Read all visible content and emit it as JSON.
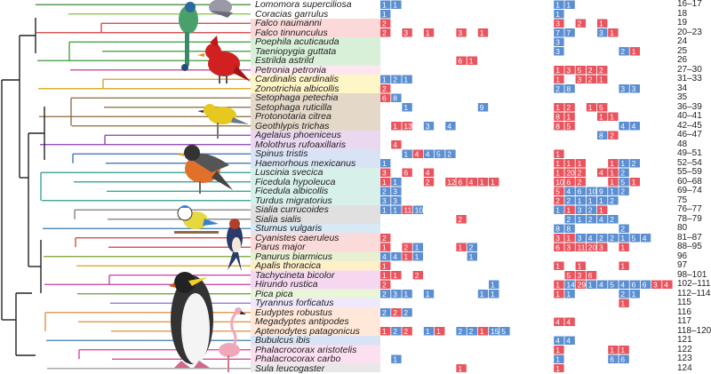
{
  "colors": {
    "high": "#e9545e",
    "low": "#5b8fd2",
    "tree": "#222222"
  },
  "rows": [
    {
      "species": "Lomomora superciliosa",
      "idx": "16–17",
      "band": "#ffffff",
      "branch": "#3a8a3a",
      "cells": [
        [
          0,
          1,
          "b"
        ],
        [
          1,
          1,
          "b"
        ],
        [
          16,
          1,
          "b"
        ],
        [
          17,
          1,
          "b"
        ]
      ]
    },
    {
      "species": "Coracias garrulus",
      "idx": "18",
      "band": "#ffffff",
      "branch": "#8ac046",
      "cells": [
        [
          0,
          1,
          "b"
        ],
        [
          16,
          1,
          "b"
        ]
      ]
    },
    {
      "species": "Falco naumanni",
      "idx": "19",
      "band": "#fbd9d9",
      "branch": "#d23b3b",
      "cells": [
        [
          0,
          2,
          "r"
        ],
        [
          16,
          3,
          "r"
        ],
        [
          18,
          2,
          "r"
        ],
        [
          20,
          1,
          "r"
        ]
      ]
    },
    {
      "species": "Falco tinnunculus",
      "idx": "20–23",
      "band": "#fbd9d9",
      "branch": "#d23b3b",
      "cells": [
        [
          0,
          2,
          "r"
        ],
        [
          2,
          3,
          "r"
        ],
        [
          4,
          1,
          "r"
        ],
        [
          7,
          3,
          "r"
        ],
        [
          9,
          1,
          "r"
        ],
        [
          16,
          7,
          "b"
        ],
        [
          17,
          7,
          "b"
        ],
        [
          20,
          3,
          "b"
        ],
        [
          21,
          1,
          "r"
        ]
      ]
    },
    {
      "species": "Poephila acuticauda",
      "idx": "24",
      "band": "#d8f0d8",
      "branch": "#3a9a3a",
      "cells": [
        [
          16,
          3,
          "b"
        ]
      ]
    },
    {
      "species": "Taeniopygia guttata",
      "idx": "25",
      "band": "#d8f0d8",
      "branch": "#3a9a3a",
      "cells": [
        [
          16,
          3,
          "b"
        ],
        [
          22,
          2,
          "b"
        ],
        [
          23,
          1,
          "r"
        ]
      ]
    },
    {
      "species": "Estrilda astrild",
      "idx": "26",
      "band": "#d8f0d8",
      "branch": "#3a9a3a",
      "cells": [
        [
          7,
          6,
          "r"
        ],
        [
          8,
          1,
          "r"
        ]
      ]
    },
    {
      "species": "Petronia petronia",
      "idx": "27–30",
      "band": "#fde6f0",
      "branch": "#c03c8c",
      "cells": [
        [
          16,
          1,
          "r"
        ],
        [
          17,
          3,
          "r"
        ],
        [
          18,
          5,
          "r"
        ],
        [
          19,
          2,
          "r"
        ],
        [
          20,
          2,
          "r"
        ]
      ]
    },
    {
      "species": "Cardinalis cardinalis",
      "idx": "31–33",
      "band": "#fff6c8",
      "branch": "#d4a017",
      "cells": [
        [
          0,
          1,
          "b"
        ],
        [
          1,
          2,
          "b"
        ],
        [
          2,
          1,
          "b"
        ],
        [
          16,
          1,
          "r"
        ],
        [
          18,
          3,
          "r"
        ],
        [
          19,
          2,
          "r"
        ],
        [
          20,
          1,
          "r"
        ]
      ]
    },
    {
      "species": "Zonotrichia albicollis",
      "idx": "34",
      "band": "#fff6c8",
      "branch": "#d4a017",
      "cells": [
        [
          0,
          2,
          "r"
        ],
        [
          16,
          2,
          "b"
        ],
        [
          17,
          8,
          "b"
        ],
        [
          22,
          3,
          "b"
        ],
        [
          23,
          3,
          "b"
        ]
      ]
    },
    {
      "species": "Setophaga petechia",
      "idx": "35",
      "band": "#e4d8c8",
      "branch": "#8a6a3a",
      "cells": [
        [
          0,
          6,
          "r"
        ],
        [
          1,
          8,
          "b"
        ]
      ]
    },
    {
      "species": "Setophaga ruticilla",
      "idx": "36–39",
      "band": "#e4d8c8",
      "branch": "#8a6a3a",
      "cells": [
        [
          2,
          1,
          "b"
        ],
        [
          9,
          9,
          "b"
        ],
        [
          16,
          1,
          "r"
        ],
        [
          17,
          2,
          "r"
        ],
        [
          19,
          1,
          "r"
        ],
        [
          20,
          5,
          "r"
        ]
      ]
    },
    {
      "species": "Protonotaria citrea",
      "idx": "40–41",
      "band": "#e4d8c8",
      "branch": "#8a6a3a",
      "cells": [
        [
          16,
          8,
          "r"
        ],
        [
          17,
          1,
          "r"
        ],
        [
          20,
          1,
          "r"
        ],
        [
          21,
          1,
          "r"
        ]
      ]
    },
    {
      "species": "Geothlypis trichas",
      "idx": "42–45",
      "band": "#e4d8c8",
      "branch": "#8a6a3a",
      "cells": [
        [
          1,
          1,
          "r"
        ],
        [
          2,
          13,
          "r"
        ],
        [
          4,
          3,
          "b"
        ],
        [
          6,
          4,
          "b"
        ],
        [
          16,
          8,
          "r"
        ],
        [
          17,
          5,
          "r"
        ],
        [
          22,
          4,
          "b"
        ],
        [
          23,
          4,
          "b"
        ]
      ]
    },
    {
      "species": "Agelaius phoeniceus",
      "idx": "46–47",
      "band": "#ead8f0",
      "branch": "#8a3ab0",
      "cells": [
        [
          20,
          8,
          "b"
        ],
        [
          21,
          2,
          "r"
        ]
      ]
    },
    {
      "species": "Molothrus rufoaxillaris",
      "idx": "48",
      "band": "#ead8f0",
      "branch": "#8a3ab0",
      "cells": [
        [
          1,
          4,
          "r"
        ]
      ]
    },
    {
      "species": "Spinus tristis",
      "idx": "49–51",
      "band": "#d8e4f5",
      "branch": "#3a6ab0",
      "cells": [
        [
          2,
          1,
          "b"
        ],
        [
          3,
          4,
          "r"
        ],
        [
          4,
          4,
          "b"
        ],
        [
          5,
          5,
          "b"
        ],
        [
          6,
          2,
          "b"
        ],
        [
          16,
          1,
          "r"
        ]
      ]
    },
    {
      "species": "Haemorhous mexicanus",
      "idx": "52–54",
      "band": "#d8e4f5",
      "branch": "#3a6ab0",
      "cells": [
        [
          0,
          1,
          "b"
        ],
        [
          16,
          1,
          "r"
        ],
        [
          17,
          1,
          "r"
        ],
        [
          18,
          1,
          "r"
        ],
        [
          21,
          1,
          "r"
        ],
        [
          22,
          1,
          "b"
        ],
        [
          23,
          2,
          "b"
        ]
      ]
    },
    {
      "species": "Luscinia svecica",
      "idx": "55–59",
      "band": "#d8f0ea",
      "branch": "#2a9a8a",
      "cells": [
        [
          0,
          3,
          "r"
        ],
        [
          2,
          6,
          "r"
        ],
        [
          4,
          4,
          "r"
        ],
        [
          16,
          1,
          "r"
        ],
        [
          17,
          20,
          "r"
        ],
        [
          18,
          2,
          "r"
        ],
        [
          20,
          4,
          "r"
        ],
        [
          21,
          1,
          "r"
        ],
        [
          22,
          2,
          "b"
        ]
      ]
    },
    {
      "species": "Ficedula hypoleuca",
      "idx": "60–68",
      "band": "#d8f0ea",
      "branch": "#2a9a8a",
      "cells": [
        [
          0,
          1,
          "r"
        ],
        [
          1,
          1,
          "b"
        ],
        [
          4,
          2,
          "r"
        ],
        [
          6,
          12,
          "r"
        ],
        [
          7,
          6,
          "r"
        ],
        [
          8,
          4,
          "r"
        ],
        [
          9,
          1,
          "r"
        ],
        [
          10,
          1,
          "r"
        ],
        [
          16,
          10,
          "r"
        ],
        [
          17,
          6,
          "r"
        ],
        [
          18,
          2,
          "r"
        ],
        [
          21,
          1,
          "r"
        ],
        [
          22,
          5,
          "b"
        ],
        [
          23,
          1,
          "r"
        ]
      ]
    },
    {
      "species": "Ficedula albicollis",
      "idx": "69–74",
      "band": "#d8f0ea",
      "branch": "#2a9a8a",
      "cells": [
        [
          0,
          2,
          "b"
        ],
        [
          1,
          3,
          "b"
        ],
        [
          16,
          5,
          "r"
        ],
        [
          17,
          4,
          "b"
        ],
        [
          18,
          6,
          "b"
        ],
        [
          19,
          10,
          "b"
        ],
        [
          20,
          9,
          "b"
        ],
        [
          21,
          1,
          "b"
        ],
        [
          22,
          2,
          "b"
        ]
      ]
    },
    {
      "species": "Turdus migratorius",
      "idx": "75",
      "band": "#d8f0ea",
      "branch": "#2a9a8a",
      "cells": [
        [
          0,
          3,
          "b"
        ],
        [
          1,
          3,
          "b"
        ],
        [
          16,
          2,
          "r"
        ],
        [
          17,
          2,
          "b"
        ],
        [
          18,
          1,
          "b"
        ],
        [
          19,
          1,
          "b"
        ],
        [
          20,
          1,
          "b"
        ],
        [
          21,
          2,
          "b"
        ]
      ]
    },
    {
      "species": "Sialia currucoides",
      "idx": "76–77",
      "band": "#e0e0e0",
      "branch": "#7a7a7a",
      "cells": [
        [
          0,
          1,
          "b"
        ],
        [
          1,
          1,
          "b"
        ],
        [
          2,
          11,
          "r"
        ],
        [
          3,
          10,
          "b"
        ],
        [
          16,
          1,
          "b"
        ],
        [
          17,
          1,
          "r"
        ],
        [
          18,
          3,
          "b"
        ],
        [
          19,
          2,
          "b"
        ],
        [
          20,
          1,
          "r"
        ]
      ]
    },
    {
      "species": "Sialia sialis",
      "idx": "78–79",
      "band": "#e0e0e0",
      "branch": "#7a7a7a",
      "cells": [
        [
          7,
          2,
          "r"
        ],
        [
          17,
          2,
          "b"
        ],
        [
          18,
          1,
          "b"
        ],
        [
          19,
          2,
          "b"
        ],
        [
          20,
          4,
          "b"
        ],
        [
          21,
          2,
          "b"
        ]
      ]
    },
    {
      "species": "Sturnus vulgaris",
      "idx": "80",
      "band": "#d8e8f5",
      "branch": "#3a7ab0",
      "cells": [
        [
          16,
          8,
          "b"
        ],
        [
          17,
          8,
          "b"
        ],
        [
          22,
          2,
          "b"
        ]
      ]
    },
    {
      "species": "Cyanistes caeruleus",
      "idx": "81–87",
      "band": "#fbdada",
      "branch": "#d23b3b",
      "cells": [
        [
          0,
          2,
          "r"
        ],
        [
          16,
          3,
          "r"
        ],
        [
          17,
          1,
          "r"
        ],
        [
          18,
          3,
          "b"
        ],
        [
          19,
          4,
          "b"
        ],
        [
          20,
          2,
          "b"
        ],
        [
          21,
          2,
          "b"
        ],
        [
          22,
          1,
          "b"
        ],
        [
          23,
          5,
          "b"
        ],
        [
          24,
          4,
          "b"
        ]
      ]
    },
    {
      "species": "Parus major",
      "idx": "88–95",
      "band": "#fbdada",
      "branch": "#d23b3b",
      "cells": [
        [
          0,
          1,
          "r"
        ],
        [
          2,
          2,
          "r"
        ],
        [
          3,
          1,
          "b"
        ],
        [
          7,
          1,
          "r"
        ],
        [
          8,
          2,
          "b"
        ],
        [
          16,
          6,
          "r"
        ],
        [
          17,
          3,
          "r"
        ],
        [
          18,
          11,
          "r"
        ],
        [
          19,
          20,
          "r"
        ],
        [
          20,
          3,
          "r"
        ],
        [
          22,
          1,
          "r"
        ]
      ]
    },
    {
      "species": "Panurus biarmicus",
      "idx": "96",
      "band": "#e8f0d0",
      "branch": "#7aa02a",
      "cells": [
        [
          0,
          4,
          "b"
        ],
        [
          1,
          4,
          "b"
        ],
        [
          2,
          1,
          "r"
        ],
        [
          3,
          1,
          "b"
        ],
        [
          8,
          1,
          "b"
        ]
      ]
    },
    {
      "species": "Apalis thoracica",
      "idx": "97",
      "band": "#fff0c8",
      "branch": "#d4a017",
      "cells": [
        [
          0,
          1,
          "r"
        ],
        [
          16,
          1,
          "r"
        ],
        [
          18,
          1,
          "r"
        ],
        [
          22,
          1,
          "r"
        ]
      ]
    },
    {
      "species": "Tachycineta bicolor",
      "idx": "98–101",
      "band": "#f5d8f0",
      "branch": "#c03ca0",
      "cells": [
        [
          0,
          1,
          "r"
        ],
        [
          1,
          1,
          "r"
        ],
        [
          3,
          2,
          "r"
        ],
        [
          17,
          5,
          "r"
        ],
        [
          18,
          3,
          "r"
        ],
        [
          19,
          6,
          "r"
        ]
      ]
    },
    {
      "species": "Hirundo rustica",
      "idx": "102–111",
      "band": "#f5d8f0",
      "branch": "#c03ca0",
      "cells": [
        [
          0,
          2,
          "r"
        ],
        [
          10,
          1,
          "b"
        ],
        [
          16,
          1,
          "r"
        ],
        [
          17,
          14,
          "b"
        ],
        [
          18,
          29,
          "r"
        ],
        [
          19,
          1,
          "b"
        ],
        [
          20,
          4,
          "b"
        ],
        [
          21,
          5,
          "b"
        ],
        [
          22,
          4,
          "b"
        ],
        [
          23,
          6,
          "b"
        ],
        [
          24,
          6,
          "b"
        ],
        [
          25,
          3,
          "r"
        ],
        [
          26,
          4,
          "r"
        ]
      ]
    },
    {
      "species": "Pica pica",
      "idx": "112–114",
      "band": "#e8f5d8",
      "branch": "#5aa03a",
      "cells": [
        [
          0,
          2,
          "b"
        ],
        [
          1,
          3,
          "b"
        ],
        [
          2,
          1,
          "b"
        ],
        [
          4,
          1,
          "b"
        ],
        [
          9,
          1,
          "b"
        ],
        [
          10,
          1,
          "b"
        ],
        [
          16,
          1,
          "r"
        ],
        [
          17,
          1,
          "b"
        ],
        [
          22,
          2,
          "b"
        ],
        [
          23,
          1,
          "b"
        ]
      ]
    },
    {
      "species": "Tyrannus forficatus",
      "idx": "115",
      "band": "#f0e8ff",
      "branch": "#8a6ad0",
      "cells": [
        [
          22,
          1,
          "r"
        ]
      ]
    },
    {
      "species": "Eudyptes robustus",
      "idx": "116",
      "band": "#ffe8d8",
      "branch": "#e08a3a",
      "cells": [
        [
          0,
          2,
          "b"
        ],
        [
          1,
          2,
          "r"
        ],
        [
          2,
          2,
          "b"
        ]
      ]
    },
    {
      "species": "Megadyptes antipodes",
      "idx": "117",
      "band": "#ffe8d8",
      "branch": "#e08a3a",
      "cells": [
        [
          16,
          4,
          "r"
        ],
        [
          17,
          4,
          "r"
        ]
      ]
    },
    {
      "species": "Aptenodytes patagonicus",
      "idx": "118–120",
      "band": "#ffe8d8",
      "branch": "#e08a3a",
      "cells": [
        [
          0,
          1,
          "r"
        ],
        [
          1,
          2,
          "b"
        ],
        [
          2,
          2,
          "r"
        ],
        [
          4,
          1,
          "b"
        ],
        [
          5,
          1,
          "r"
        ],
        [
          7,
          2,
          "b"
        ],
        [
          8,
          2,
          "b"
        ],
        [
          9,
          1,
          "r"
        ],
        [
          10,
          15,
          "b"
        ],
        [
          11,
          5,
          "b"
        ]
      ]
    },
    {
      "species": "Bubulcus ibis",
      "idx": "121",
      "band": "#d8e4f5",
      "branch": "#3a7ab0",
      "cells": [
        [
          16,
          4,
          "b"
        ],
        [
          17,
          4,
          "b"
        ]
      ]
    },
    {
      "species": "Phalacrocorax aristotelis",
      "idx": "122",
      "band": "#fde0f0",
      "branch": "#d03c9c",
      "cells": [
        [
          16,
          1,
          "r"
        ],
        [
          21,
          1,
          "r"
        ],
        [
          22,
          1,
          "r"
        ]
      ]
    },
    {
      "species": "Phalacrocorax carbo",
      "idx": "123",
      "band": "#fde0f0",
      "branch": "#d03c9c",
      "cells": [
        [
          1,
          1,
          "b"
        ],
        [
          16,
          1,
          "b"
        ],
        [
          21,
          6,
          "b"
        ],
        [
          22,
          6,
          "b"
        ]
      ]
    },
    {
      "species": "Sula leucogaster",
      "idx": "124",
      "band": "#e8e8e8",
      "branch": "#9a9a9a",
      "cells": [
        [
          7,
          1,
          "r"
        ],
        [
          16,
          1,
          "r"
        ]
      ]
    }
  ]
}
